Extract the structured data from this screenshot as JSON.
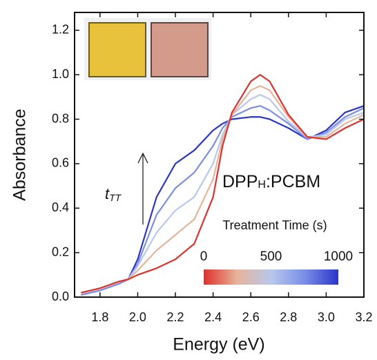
{
  "chart_data": {
    "type": "line",
    "xlabel": "Energy (eV)",
    "ylabel": "Absorbance",
    "xlim": [
      1.665,
      3.2
    ],
    "ylim": [
      0,
      1.28
    ],
    "xticks": [
      1.8,
      {
        "value": 2,
        "label": "2.0"
      },
      2.2,
      2.4,
      2.6,
      2.8,
      {
        "value": 3,
        "label": "3.0"
      },
      3.2
    ],
    "yticks": [
      {
        "value": 0,
        "label": "0.0"
      },
      {
        "value": 0.2,
        "label": "0.2"
      },
      {
        "value": 0.4,
        "label": "0.4"
      },
      {
        "value": 0.6,
        "label": "0.6"
      },
      {
        "value": 0.8,
        "label": "0.8"
      },
      {
        "value": 1,
        "label": "1.0"
      },
      {
        "value": 1.2,
        "label": "1.2"
      }
    ],
    "x": [
      1.7,
      1.8,
      1.9,
      1.95,
      2.0,
      2.1,
      2.2,
      2.3,
      2.4,
      2.45,
      2.5,
      2.6,
      2.65,
      2.7,
      2.8,
      2.9,
      3.0,
      3.1,
      3.2
    ],
    "series": [
      {
        "color": "#2a35c8",
        "values": [
          0.01,
          0.03,
          0.06,
          0.08,
          0.17,
          0.45,
          0.6,
          0.66,
          0.75,
          0.78,
          0.8,
          0.81,
          0.81,
          0.8,
          0.76,
          0.71,
          0.75,
          0.83,
          0.86
        ]
      },
      {
        "color": "#7a8ee8",
        "values": [
          0.01,
          0.03,
          0.06,
          0.08,
          0.15,
          0.37,
          0.49,
          0.56,
          0.68,
          0.76,
          0.81,
          0.85,
          0.86,
          0.84,
          0.78,
          0.71,
          0.74,
          0.81,
          0.85
        ]
      },
      {
        "color": "#b8c8ec",
        "values": [
          0.02,
          0.04,
          0.07,
          0.08,
          0.14,
          0.29,
          0.39,
          0.45,
          0.6,
          0.73,
          0.82,
          0.89,
          0.91,
          0.89,
          0.79,
          0.72,
          0.73,
          0.8,
          0.83
        ]
      },
      {
        "color": "#e6b49a",
        "values": [
          0.02,
          0.04,
          0.07,
          0.08,
          0.12,
          0.21,
          0.28,
          0.35,
          0.53,
          0.71,
          0.82,
          0.93,
          0.95,
          0.93,
          0.81,
          0.72,
          0.72,
          0.78,
          0.82
        ]
      },
      {
        "color": "#e0302a",
        "values": [
          0.02,
          0.04,
          0.07,
          0.08,
          0.1,
          0.13,
          0.17,
          0.24,
          0.45,
          0.68,
          0.83,
          0.97,
          1.0,
          0.97,
          0.82,
          0.72,
          0.71,
          0.76,
          0.8
        ]
      }
    ],
    "sample_label": [
      "DPP",
      "H",
      ":PCBM"
    ],
    "arrow_label": [
      "t",
      "TT"
    ],
    "colorbar": {
      "label": "Treatment Time (s)",
      "lim": [
        0,
        1000
      ],
      "ticks": [
        0,
        500,
        1000
      ],
      "colors": [
        "#e0302a",
        "#e6b49a",
        "#b8c8ec",
        "#7a8ee8",
        "#2a35c8"
      ]
    }
  }
}
